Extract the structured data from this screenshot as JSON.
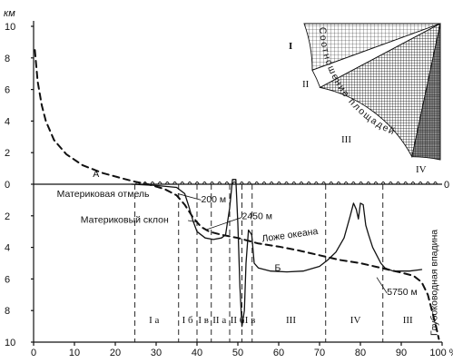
{
  "chart_data": {
    "type": "line",
    "xlim": [
      0,
      100
    ],
    "ylim_height_km": [
      0,
      10
    ],
    "ylim_depth_km": [
      0,
      10
    ],
    "xticks": [
      0,
      10,
      20,
      30,
      40,
      50,
      60,
      70,
      80,
      90,
      "100 %"
    ],
    "yticks_height": [
      10,
      8,
      6,
      4,
      2,
      0
    ],
    "yticks_depth": [
      2,
      4,
      6,
      8,
      10
    ],
    "y_unit": "км",
    "zero_right": "0",
    "series": [
      {
        "name": "А",
        "style": "dashed",
        "points": [
          [
            0.3,
            8.5
          ],
          [
            1,
            6.5
          ],
          [
            2,
            5.0
          ],
          [
            3,
            4.0
          ],
          [
            5,
            2.8
          ],
          [
            8,
            1.9
          ],
          [
            12,
            1.2
          ],
          [
            17,
            0.7
          ],
          [
            22,
            0.35
          ],
          [
            25,
            0.15
          ],
          [
            28,
            0.0
          ],
          [
            32,
            -0.3
          ],
          [
            35,
            -0.7
          ],
          [
            37,
            -1.3
          ],
          [
            39,
            -2.1
          ],
          [
            41,
            -2.7
          ],
          [
            43,
            -3.0
          ],
          [
            46,
            -3.2
          ],
          [
            50,
            -3.4
          ],
          [
            55,
            -3.75
          ],
          [
            60,
            -3.95
          ],
          [
            65,
            -4.2
          ],
          [
            70,
            -4.5
          ],
          [
            75,
            -4.8
          ],
          [
            80,
            -5.0
          ],
          [
            85,
            -5.3
          ],
          [
            90,
            -5.6
          ],
          [
            93,
            -5.8
          ],
          [
            95,
            -6.2
          ],
          [
            96.5,
            -7.0
          ],
          [
            97.5,
            -8.0
          ],
          [
            98.5,
            -9.0
          ],
          [
            99.2,
            -9.8
          ]
        ]
      },
      {
        "name": "Б",
        "style": "solid",
        "points": [
          [
            24,
            0.0
          ],
          [
            30,
            -0.08
          ],
          [
            35,
            -0.2
          ],
          [
            37,
            -0.6
          ],
          [
            38,
            -1.4
          ],
          [
            39,
            -2.3
          ],
          [
            40,
            -3.0
          ],
          [
            42,
            -3.4
          ],
          [
            44,
            -3.5
          ],
          [
            46,
            -3.4
          ],
          [
            47,
            -3.2
          ],
          [
            48,
            -1.5
          ],
          [
            48.7,
            0.3
          ],
          [
            49.5,
            0.3
          ],
          [
            50,
            -2.5
          ],
          [
            50.5,
            -6.5
          ],
          [
            51,
            -9.0
          ],
          [
            51.6,
            -8.0
          ],
          [
            52,
            -5.0
          ],
          [
            52.6,
            -2.9
          ],
          [
            53.4,
            -3.2
          ],
          [
            54,
            -5.0
          ],
          [
            55,
            -5.3
          ],
          [
            58,
            -5.5
          ],
          [
            62,
            -5.55
          ],
          [
            66,
            -5.5
          ],
          [
            70,
            -5.2
          ],
          [
            72,
            -4.8
          ],
          [
            74,
            -4.3
          ],
          [
            76,
            -3.4
          ],
          [
            77.5,
            -2.0
          ],
          [
            78.3,
            -1.2
          ],
          [
            79,
            -1.6
          ],
          [
            79.5,
            -2.2
          ],
          [
            80,
            -1.2
          ],
          [
            80.7,
            -1.3
          ],
          [
            81.3,
            -2.6
          ],
          [
            82,
            -3.2
          ],
          [
            83,
            -4.0
          ],
          [
            84,
            -4.5
          ],
          [
            85,
            -5.0
          ],
          [
            86,
            -5.3
          ],
          [
            88,
            -5.5
          ],
          [
            92,
            -5.5
          ],
          [
            95,
            -5.4
          ]
        ]
      }
    ],
    "zone_boundaries": [
      24.8,
      35.5,
      40,
      43.5,
      48,
      51,
      53.5,
      71.5,
      85.5
    ],
    "zones": [
      {
        "label": "I а",
        "x": 29.5
      },
      {
        "label": "I б",
        "x": 37.7
      },
      {
        "label": "I в",
        "x": 41.6
      },
      {
        "label": "II а",
        "x": 45.5
      },
      {
        "label": "II б",
        "x": 49.9
      },
      {
        "label": "II в",
        "x": 52.6
      },
      {
        "label": "III",
        "x": 63
      },
      {
        "label": "IV",
        "x": 78.8
      },
      {
        "label": "III",
        "x": 91.6
      }
    ],
    "annotations": {
      "curve_a": "А",
      "curve_b": "Б",
      "shelf": "Материковая отмель",
      "shelf_depth": "200 м",
      "slope": "Материковый склон",
      "slope_depth": "2450 м",
      "ocean_bed": "Ложе океана",
      "trench_depth": "5750 м",
      "trench": "Глубоководная впадина"
    },
    "inset": {
      "title": "Соотношение площадей",
      "labels": [
        "I",
        "II",
        "III",
        "IV"
      ]
    }
  }
}
